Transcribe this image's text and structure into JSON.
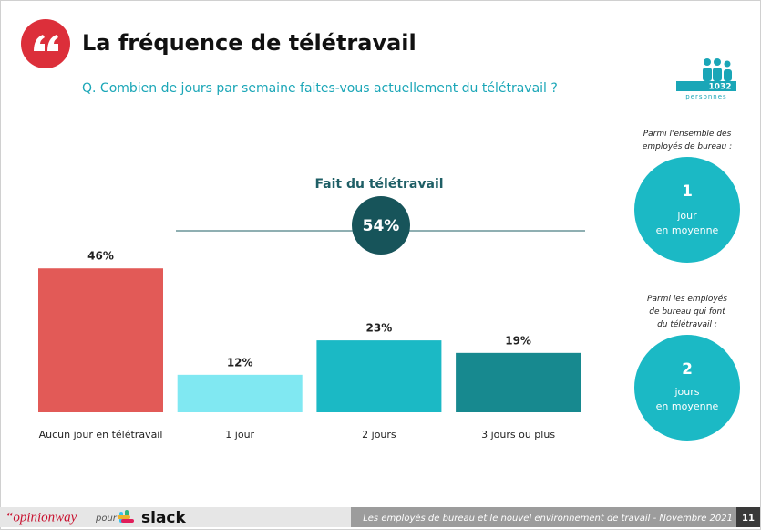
{
  "header": {
    "title": "La fréquence de télétravail",
    "question": "Q. Combien de jours par semaine faites-vous actuellement du télétravail ?",
    "sample_size": "1032",
    "sample_unit": "personnes"
  },
  "chart_data": {
    "type": "bar",
    "categories": [
      "Aucun jour en télétravail",
      "1 jour",
      "2 jours",
      "3 jours ou plus"
    ],
    "values": [
      46,
      12,
      23,
      19
    ],
    "value_labels": [
      "46%",
      "12%",
      "23%",
      "19%"
    ],
    "colors": [
      "#e25a57",
      "#80e8f2",
      "#1bb9c5",
      "#17898f"
    ],
    "group_label": "Fait du télétravail",
    "group_total": {
      "value": 54,
      "label": "54%"
    }
  },
  "sidebar": [
    {
      "caption": "Parmi l'ensemble des employés de bureau :",
      "number": "1",
      "unit": "jour en moyenne"
    },
    {
      "caption": "Parmi les employés de bureau qui font du télétravail :",
      "number": "2",
      "unit": "jours en moyenne"
    }
  ],
  "footer": {
    "brand": "“opinionway",
    "pour": "pour",
    "partner": "slack",
    "study": "Les employés de bureau et le nouvel environnement de travail - Novembre 2021",
    "page": "11"
  }
}
